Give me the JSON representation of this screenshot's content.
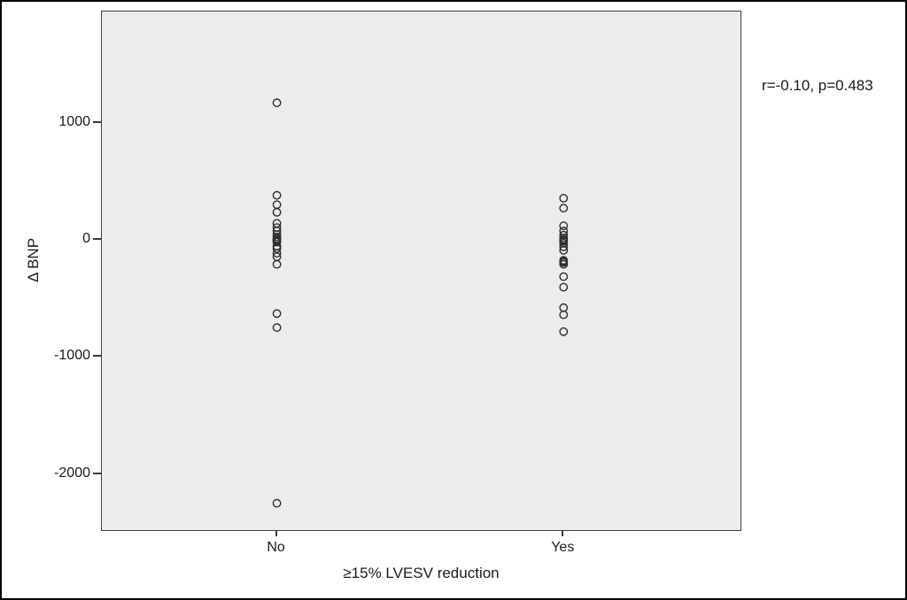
{
  "chart_data": {
    "type": "scatter",
    "title": "",
    "xlabel": "≥15% LVESV reduction",
    "ylabel": "Δ BNP",
    "annotation": "r=-0.10, p=0.483",
    "categories": [
      "No",
      "Yes"
    ],
    "category_positions": [
      0.274,
      0.723
    ],
    "yticks": [
      1000,
      0,
      -1000,
      -2000
    ],
    "ylim": [
      -2480,
      1950
    ],
    "grid": false,
    "legend": "none",
    "plot_background": "#ececec",
    "point_color": "#2d2d2d",
    "series": [
      {
        "name": "No",
        "values": [
          1170,
          380,
          300,
          235,
          140,
          105,
          75,
          45,
          25,
          10,
          0,
          0,
          -10,
          -20,
          -55,
          -75,
          -115,
          -145,
          -210,
          -630,
          -750,
          -2250
        ]
      },
      {
        "name": "Yes",
        "values": [
          355,
          270,
          120,
          75,
          40,
          15,
          0,
          -5,
          -15,
          -30,
          -60,
          -90,
          -175,
          -185,
          -195,
          -210,
          -315,
          -405,
          -580,
          -640,
          -785
        ]
      }
    ]
  }
}
